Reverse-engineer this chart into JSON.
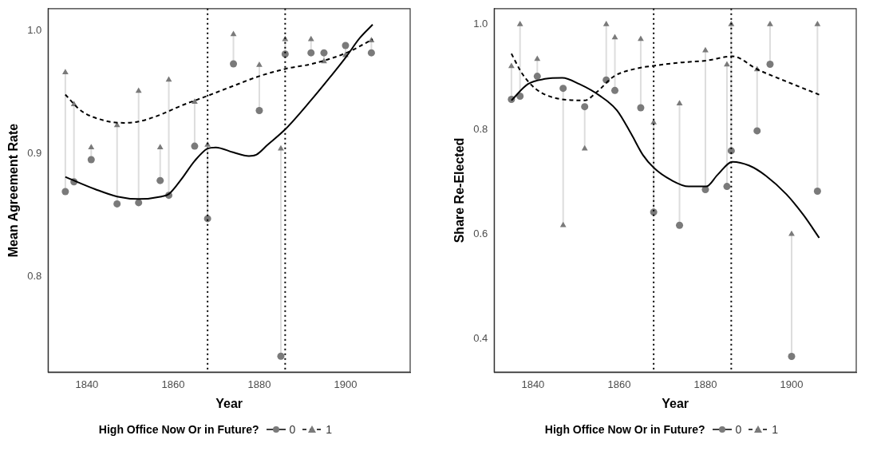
{
  "chart_data": [
    {
      "type": "scatter",
      "xlabel": "Year",
      "ylabel": "Mean Agreement Rate",
      "legend_title": "High Office Now Or in Future?",
      "legend": "bottom",
      "grid": false,
      "xlim": [
        1831,
        1915
      ],
      "xticks": [
        1840,
        1860,
        1880,
        1900
      ],
      "ylim": [
        0.722,
        1.018
      ],
      "yticks": [
        0.8,
        0.9,
        {
          "value": 1,
          "label": "1.0"
        }
      ],
      "ref_lines": [
        {
          "axis": "x",
          "value": 1868,
          "color": "#000000",
          "line_style": "dotted"
        },
        {
          "axis": "x",
          "value": 1886,
          "color": "#000000",
          "line_style": "dotted"
        }
      ],
      "series": [
        {
          "name": "0",
          "marker": "circle",
          "color": "#7a7a7a",
          "x": [
            1835,
            1837,
            1841,
            1847,
            1852,
            1857,
            1859,
            1865,
            1868,
            1874,
            1880,
            1885,
            1886,
            1892,
            1895,
            1900,
            1906
          ],
          "values": [
            0.869,
            0.877,
            0.895,
            0.859,
            0.86,
            0.878,
            0.866,
            0.906,
            0.847,
            0.973,
            0.935,
            0.735,
            0.981,
            0.982,
            0.982,
            0.988,
            0.982
          ],
          "errors": [
            [
              0.869,
              0.966
            ],
            [
              0.877,
              0.94
            ],
            [
              0.895,
              0.905
            ],
            [
              0.859,
              0.923
            ],
            [
              0.86,
              0.951
            ],
            [
              0.878,
              0.905
            ],
            [
              0.866,
              0.96
            ],
            [
              0.906,
              0.942
            ],
            [
              0.847,
              0.907
            ],
            [
              0.973,
              0.997
            ],
            [
              0.935,
              0.972
            ],
            [
              0.735,
              0.904
            ],
            [
              0.981,
              0.993
            ],
            [
              0.982,
              0.993
            ],
            [
              0.975,
              0.982
            ],
            [
              0.98,
              0.988
            ],
            [
              0.982,
              0.992
            ]
          ]
        },
        {
          "name": "1",
          "marker": "triangle",
          "color": "#7a7a7a",
          "x": [
            1835,
            1837,
            1841,
            1847,
            1852,
            1857,
            1859,
            1865,
            1868,
            1874,
            1880,
            1885,
            1886,
            1892,
            1895,
            1900,
            1906
          ],
          "values": [
            0.966,
            0.94,
            0.905,
            0.923,
            0.951,
            0.905,
            0.96,
            0.942,
            0.907,
            0.997,
            0.972,
            0.904,
            0.993,
            0.993,
            0.975,
            0.98,
            0.992
          ]
        },
        {
          "type": "line",
          "marker": "none",
          "line_style": "solid",
          "color": "#000000",
          "x": [
            1835,
            1841.9,
            1847,
            1852,
            1857.3,
            1859,
            1861.9,
            1865,
            1868,
            1869.9,
            1873.9,
            1877.6,
            1879.3,
            1881.9,
            1886.1,
            1891.9,
            1896.6,
            1900.2,
            1903.3,
            1906.3
          ],
          "values": [
            0.881,
            0.871,
            0.865,
            0.863,
            0.865,
            0.867,
            0.879,
            0.894,
            0.904,
            0.905,
            0.901,
            0.898,
            0.899,
            0.907,
            0.92,
            0.943,
            0.963,
            0.979,
            0.994,
            1.005
          ]
        },
        {
          "type": "line",
          "marker": "none",
          "line_style": "dashed",
          "color": "#000000",
          "x": [
            1835,
            1838.6,
            1843.9,
            1848.6,
            1852,
            1856.6,
            1861.9,
            1868,
            1873.9,
            1880,
            1886.1,
            1892.2,
            1900.2,
            1906.3
          ],
          "values": [
            0.948,
            0.935,
            0.927,
            0.925,
            0.926,
            0.931,
            0.939,
            0.947,
            0.955,
            0.963,
            0.969,
            0.973,
            0.982,
            0.993
          ]
        }
      ]
    },
    {
      "type": "scatter",
      "xlabel": "Year",
      "ylabel": "Share Re-Elected",
      "legend_title": "High Office Now Or in Future?",
      "legend": "bottom",
      "grid": false,
      "xlim": [
        1831,
        1915
      ],
      "xticks": [
        1840,
        1860,
        1880,
        1900
      ],
      "ylim": [
        0.337,
        1.03
      ],
      "yticks": [
        0.4,
        0.6,
        0.8,
        {
          "value": 1,
          "label": "1.0"
        }
      ],
      "ref_lines": [
        {
          "axis": "x",
          "value": 1868,
          "color": "#000000",
          "line_style": "dotted"
        },
        {
          "axis": "x",
          "value": 1886,
          "color": "#000000",
          "line_style": "dotted"
        }
      ],
      "series": [
        {
          "name": "0",
          "marker": "circle",
          "color": "#7a7a7a",
          "x": [
            1835,
            1837,
            1841,
            1847,
            1852,
            1857,
            1859,
            1865,
            1868,
            1874,
            1880,
            1885,
            1886,
            1892,
            1895,
            1900,
            1906
          ],
          "values": [
            0.857,
            0.863,
            0.901,
            0.878,
            0.843,
            0.894,
            0.874,
            0.841,
            0.642,
            0.617,
            0.685,
            0.691,
            0.759,
            0.797,
            0.924,
            0.367,
            0.682
          ],
          "errors": [
            [
              0.857,
              0.92
            ],
            [
              0.863,
              1.0
            ],
            [
              0.901,
              0.934
            ],
            [
              0.617,
              0.878
            ],
            [
              0.763,
              0.843
            ],
            [
              0.894,
              1.0
            ],
            [
              0.874,
              0.975
            ],
            [
              0.841,
              0.972
            ],
            [
              0.642,
              0.813
            ],
            [
              0.617,
              0.849
            ],
            [
              0.685,
              0.95
            ],
            [
              0.691,
              0.923
            ],
            [
              0.759,
              1.0
            ],
            [
              0.797,
              0.914
            ],
            [
              0.924,
              1.0
            ],
            [
              0.367,
              0.6
            ],
            [
              0.682,
              1.0
            ]
          ]
        },
        {
          "name": "1",
          "marker": "triangle",
          "color": "#7a7a7a",
          "x": [
            1835,
            1837,
            1841,
            1847,
            1852,
            1857,
            1859,
            1865,
            1868,
            1874,
            1880,
            1885,
            1886,
            1892,
            1895,
            1900,
            1906
          ],
          "values": [
            0.92,
            1.0,
            0.934,
            0.617,
            0.763,
            1.0,
            0.975,
            0.972,
            0.813,
            0.849,
            0.95,
            0.923,
            1.0,
            0.914,
            1.0,
            0.6,
            1.0
          ]
        },
        {
          "type": "line",
          "marker": "none",
          "line_style": "solid",
          "color": "#000000",
          "x": [
            1835,
            1838.8,
            1842.8,
            1846.8,
            1850.8,
            1855.5,
            1859.5,
            1862.8,
            1865.5,
            1868.1,
            1872.1,
            1876.1,
            1880.2,
            1882.8,
            1886.3,
            1890.1,
            1894.1,
            1898.8,
            1902.8,
            1906.4
          ],
          "values": [
            0.855,
            0.886,
            0.896,
            0.898,
            0.886,
            0.864,
            0.836,
            0.791,
            0.751,
            0.726,
            0.703,
            0.691,
            0.691,
            0.713,
            0.738,
            0.731,
            0.711,
            0.676,
            0.636,
            0.593
          ]
        },
        {
          "type": "line",
          "marker": "none",
          "line_style": "dashed",
          "color": "#000000",
          "x": [
            1835,
            1837.5,
            1840.8,
            1845.5,
            1852,
            1854.8,
            1858.8,
            1864.1,
            1868,
            1874,
            1880.2,
            1886.3,
            1892.1,
            1898.8,
            1906.4
          ],
          "values": [
            0.944,
            0.906,
            0.876,
            0.859,
            0.855,
            0.871,
            0.901,
            0.916,
            0.921,
            0.927,
            0.931,
            0.939,
            0.914,
            0.891,
            0.866
          ]
        }
      ]
    }
  ]
}
